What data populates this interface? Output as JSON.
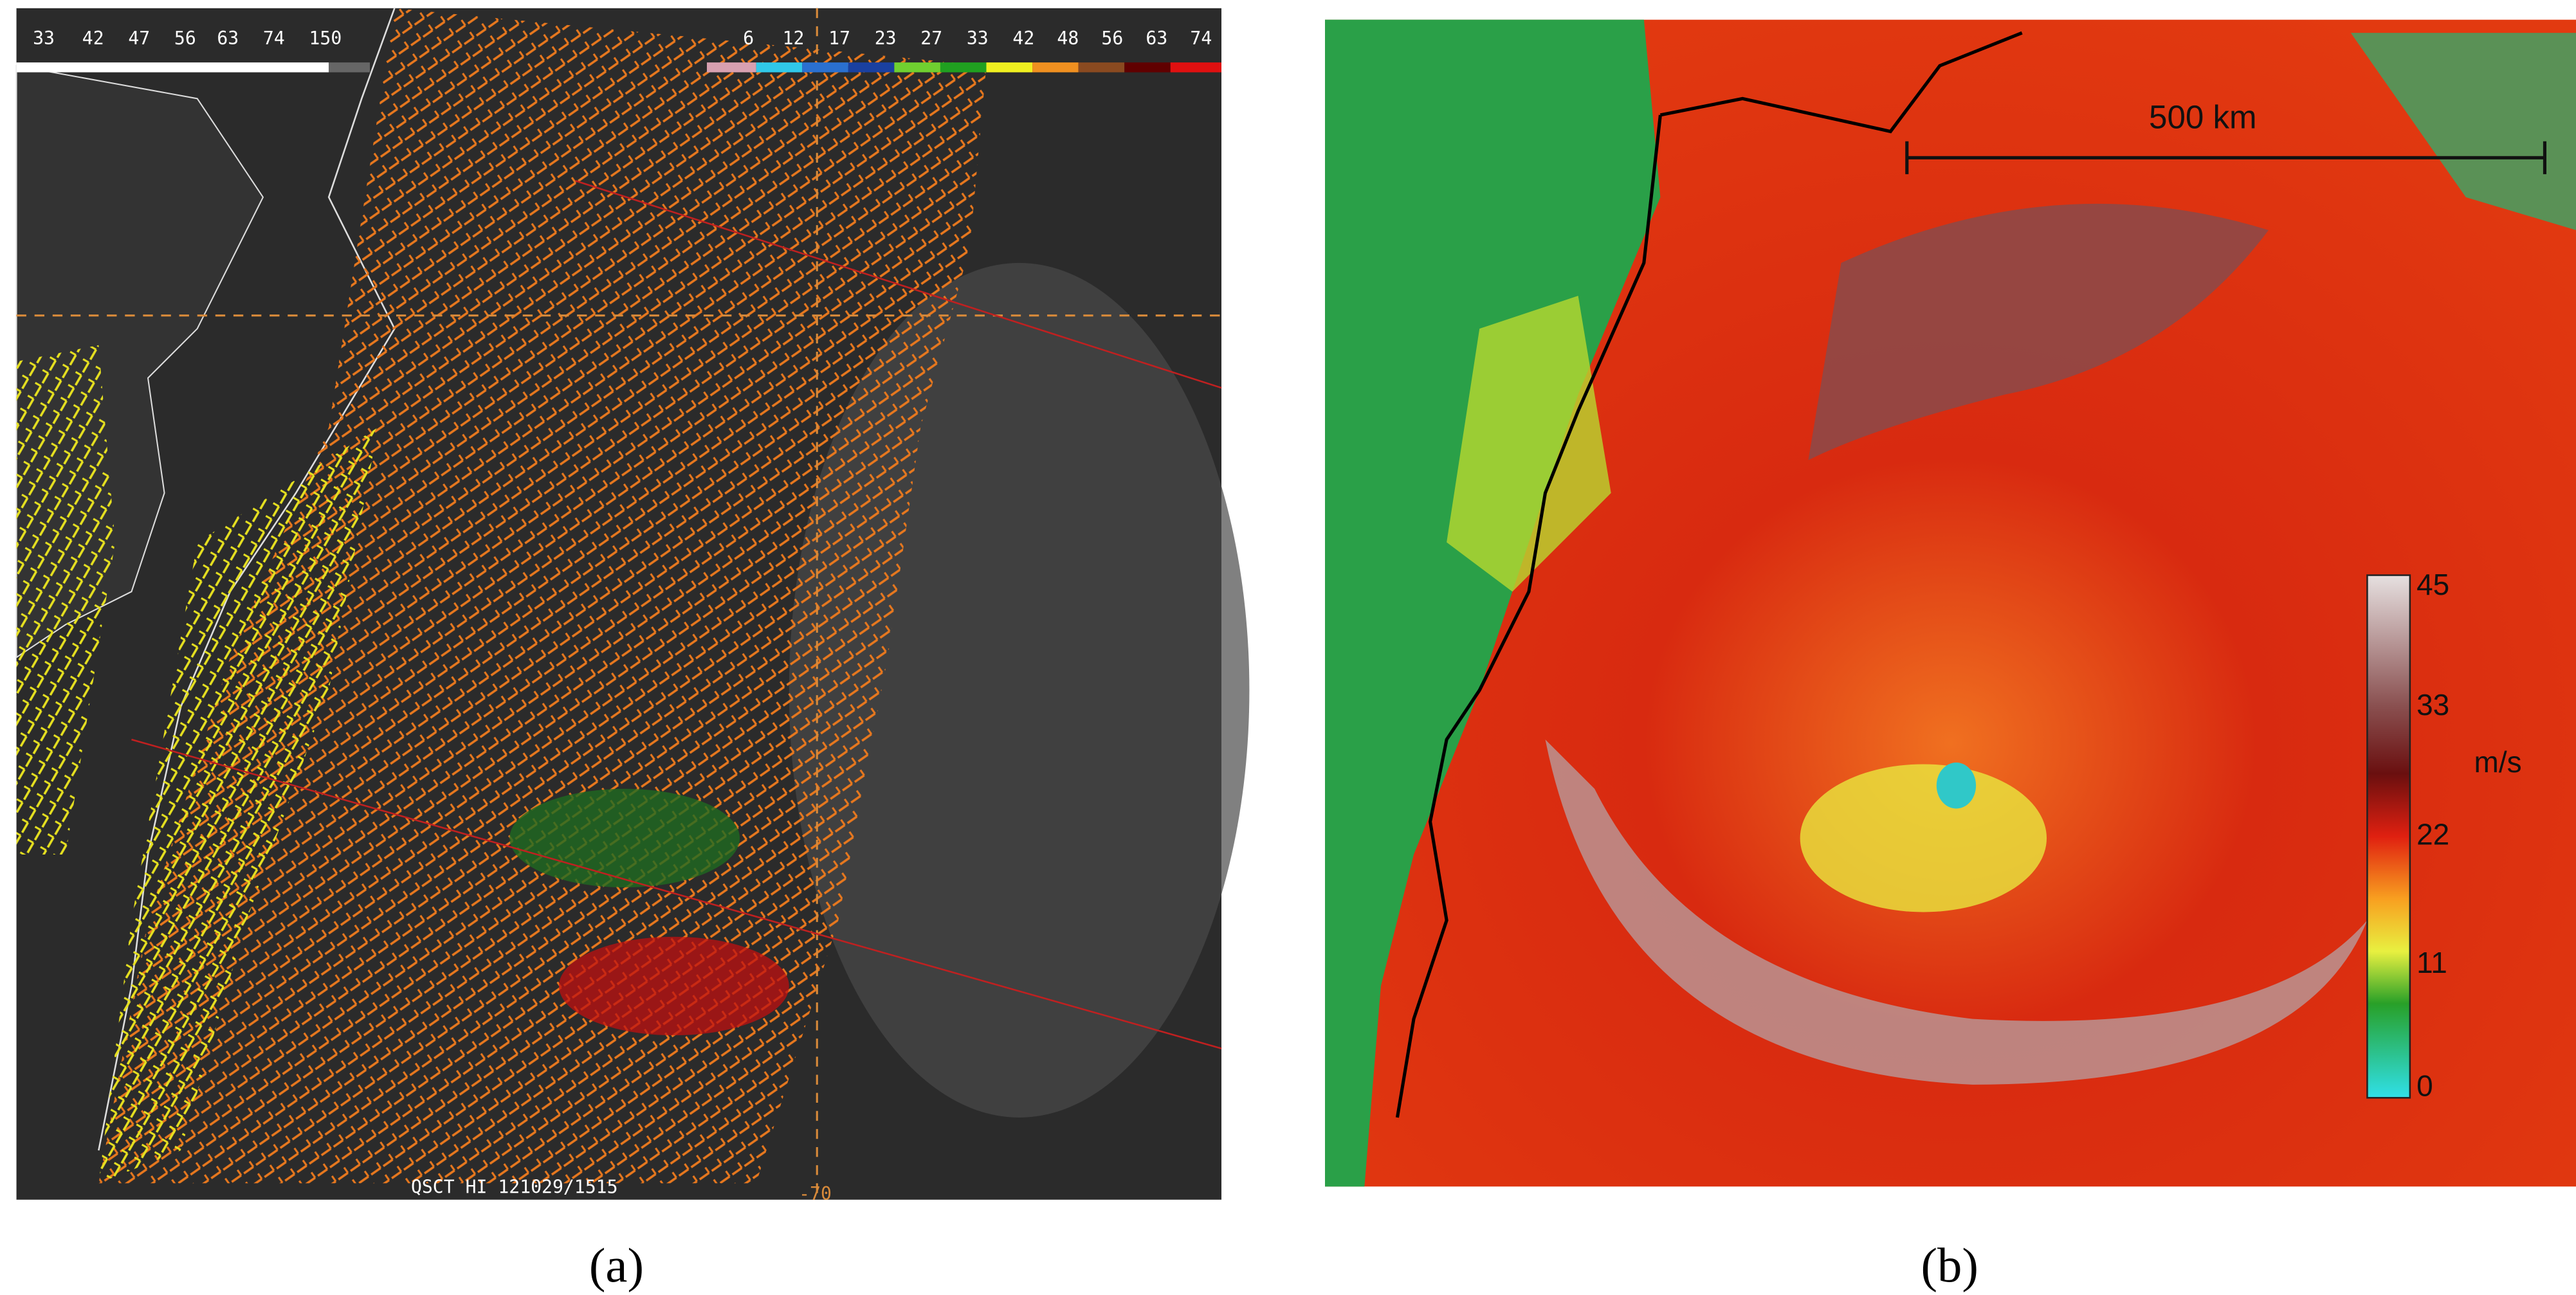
{
  "panel_a": {
    "speed_key": [
      "33",
      "42",
      "47",
      "56",
      "63",
      "74",
      "150"
    ],
    "color_key": [
      "6",
      "12",
      "17",
      "23",
      "27",
      "33",
      "42",
      "48",
      "56",
      "63",
      "74"
    ],
    "stamp": "QSCT HI 121029/1515",
    "longitude_label": "-70",
    "caption": "(a)"
  },
  "panel_b": {
    "scale_bar": "500 km",
    "colorbar_ticks": [
      "45",
      "33",
      "22",
      "11",
      "0"
    ],
    "colorbar_unit": "m/s",
    "caption": "(b)"
  }
}
